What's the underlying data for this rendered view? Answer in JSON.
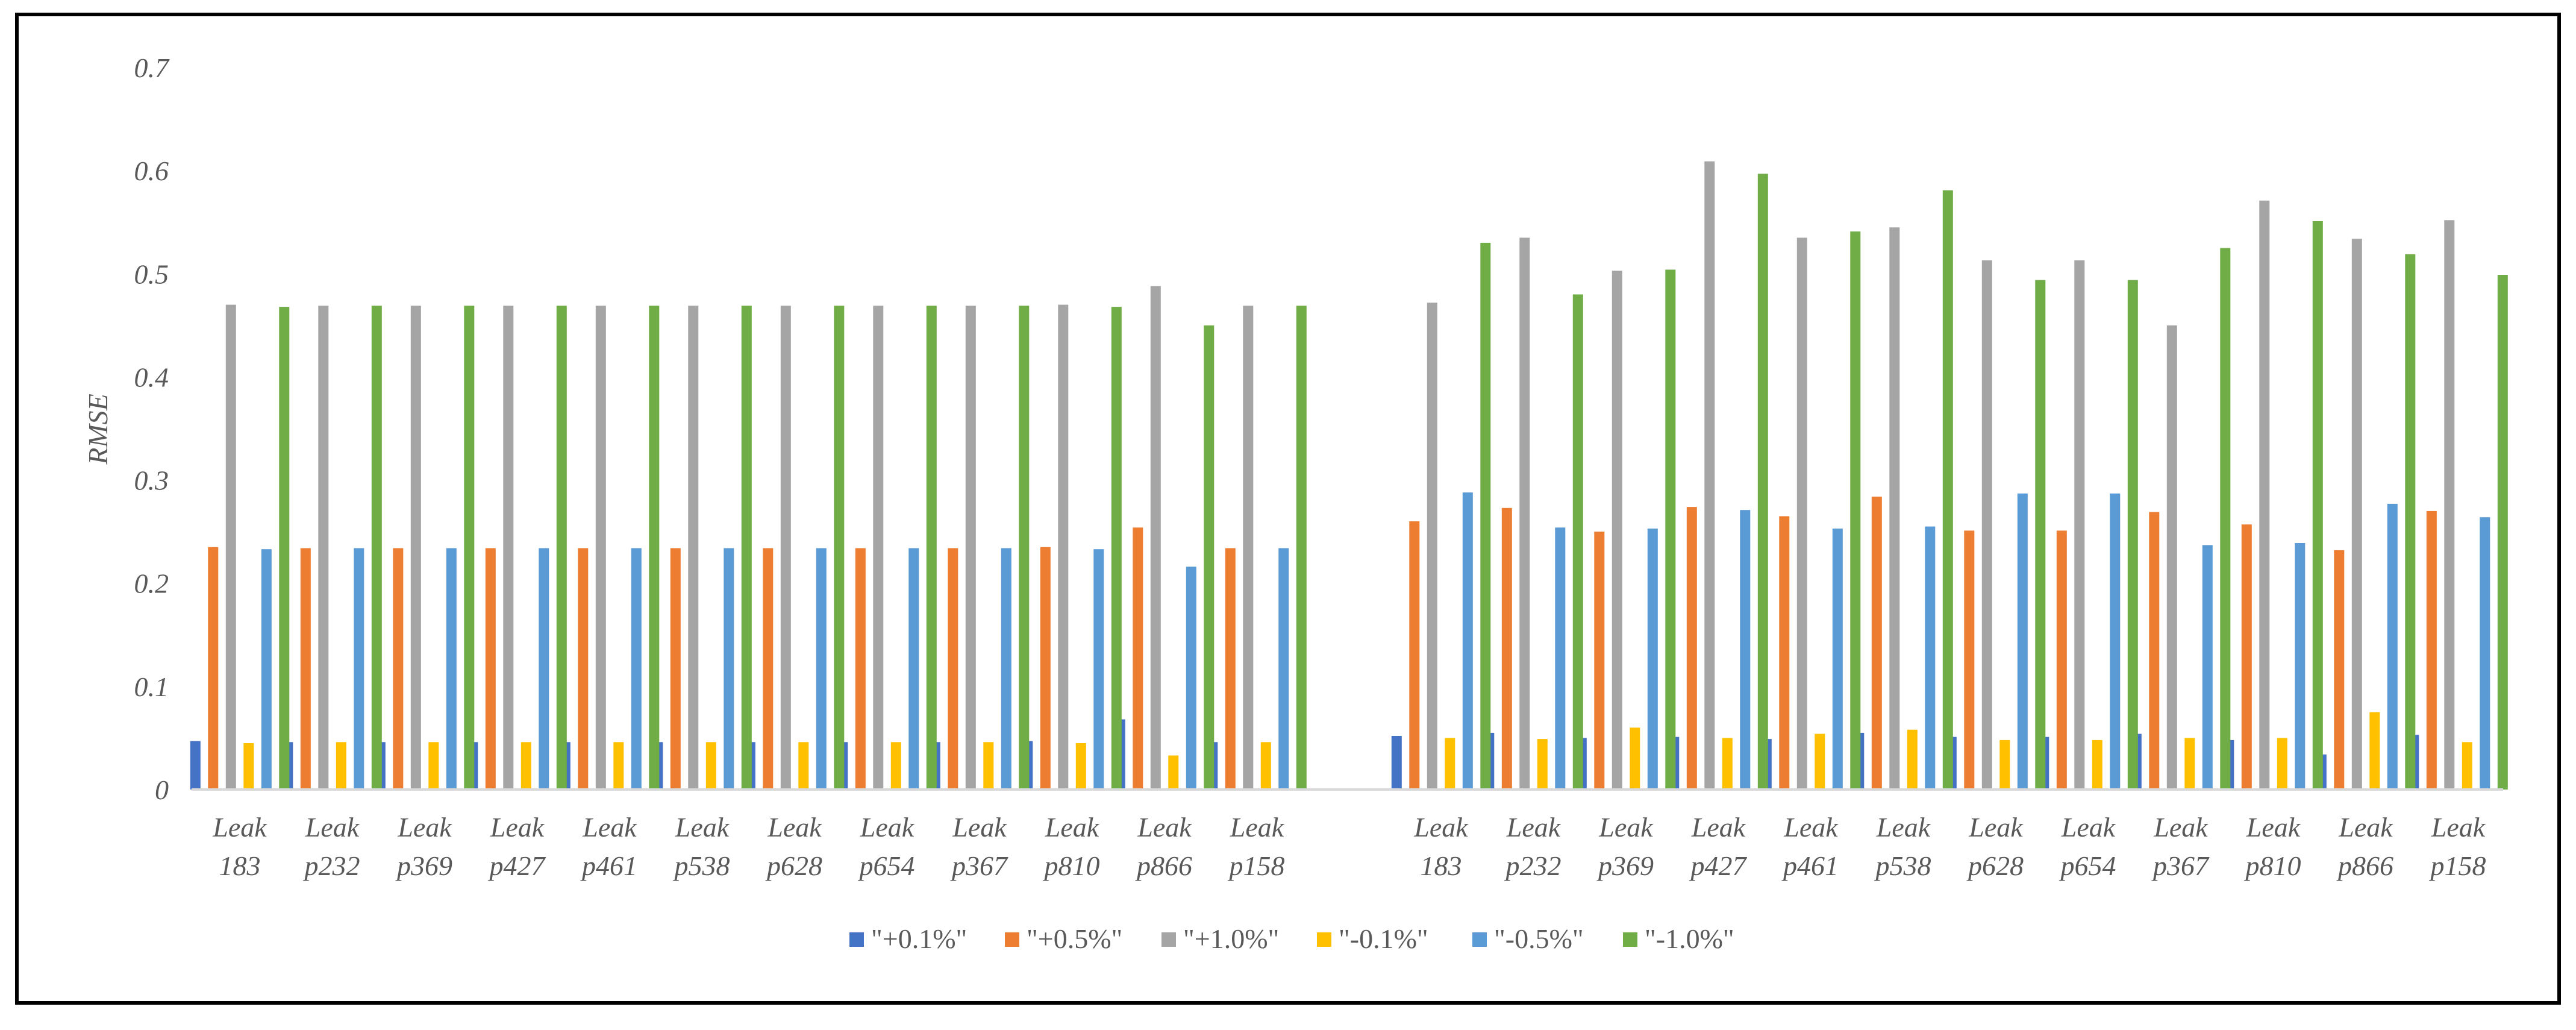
{
  "chart_data": {
    "type": "bar",
    "title": "",
    "xlabel": "",
    "ylabel": "RMSE",
    "ylim": [
      0,
      0.7
    ],
    "yticks": [
      "0",
      "0.1",
      "0.2",
      "0.3",
      "0.4",
      "0.5",
      "0.6",
      "0.7"
    ],
    "grid": false,
    "legend_position": "bottom",
    "categories": [
      [
        "Leak",
        "183"
      ],
      [
        "Leak",
        "p232"
      ],
      [
        "Leak",
        "p369"
      ],
      [
        "Leak",
        "p427"
      ],
      [
        "Leak",
        "p461"
      ],
      [
        "Leak",
        "p538"
      ],
      [
        "Leak",
        "p628"
      ],
      [
        "Leak",
        "p654"
      ],
      [
        "Leak",
        "p367"
      ],
      [
        "Leak",
        "p810"
      ],
      [
        "Leak",
        "p866"
      ],
      [
        "Leak",
        "p158"
      ],
      [
        "Leak",
        "183"
      ],
      [
        "Leak",
        "p232"
      ],
      [
        "Leak",
        "p369"
      ],
      [
        "Leak",
        "p427"
      ],
      [
        "Leak",
        "p461"
      ],
      [
        "Leak",
        "p538"
      ],
      [
        "Leak",
        "p628"
      ],
      [
        "Leak",
        "p654"
      ],
      [
        "Leak",
        "p367"
      ],
      [
        "Leak",
        "p810"
      ],
      [
        "Leak",
        "p866"
      ],
      [
        "Leak",
        "p158"
      ]
    ],
    "series": [
      {
        "name": "\"+0.1%\"",
        "color": "#4472c4",
        "values": [
          0.047,
          0.046,
          0.046,
          0.046,
          0.046,
          0.046,
          0.046,
          0.046,
          0.046,
          0.047,
          0.068,
          0.046,
          0.052,
          0.055,
          0.05,
          0.051,
          0.049,
          0.055,
          0.051,
          0.051,
          0.054,
          0.048,
          0.034,
          0.053
        ]
      },
      {
        "name": "\"+0.5%\"",
        "color": "#ed7d31",
        "values": [
          0.235,
          0.234,
          0.234,
          0.234,
          0.234,
          0.234,
          0.234,
          0.234,
          0.234,
          0.235,
          0.254,
          0.234,
          0.26,
          0.273,
          0.25,
          0.274,
          0.265,
          0.284,
          0.251,
          0.251,
          0.269,
          0.257,
          0.232,
          0.27
        ]
      },
      {
        "name": "\"+1.0%\"",
        "color": "#a5a5a5",
        "values": [
          0.47,
          0.469,
          0.469,
          0.469,
          0.469,
          0.469,
          0.469,
          0.469,
          0.469,
          0.47,
          0.488,
          0.469,
          0.472,
          0.535,
          0.503,
          0.609,
          0.535,
          0.545,
          0.513,
          0.513,
          0.45,
          0.571,
          0.534,
          0.552
        ]
      },
      {
        "name": "\"-0.1%\"",
        "color": "#ffc000",
        "values": [
          0.045,
          0.046,
          0.046,
          0.046,
          0.046,
          0.046,
          0.046,
          0.046,
          0.046,
          0.045,
          0.033,
          0.046,
          0.05,
          0.049,
          0.06,
          0.05,
          0.054,
          0.058,
          0.048,
          0.048,
          0.05,
          0.05,
          0.075,
          0.046
        ]
      },
      {
        "name": "\"-0.5%\"",
        "color": "#5b9bd5",
        "values": [
          0.233,
          0.234,
          0.234,
          0.234,
          0.234,
          0.234,
          0.234,
          0.234,
          0.234,
          0.233,
          0.216,
          0.234,
          0.288,
          0.254,
          0.253,
          0.271,
          0.253,
          0.255,
          0.287,
          0.287,
          0.237,
          0.239,
          0.277,
          0.264
        ]
      },
      {
        "name": "\"-1.0%\"",
        "color": "#70ad47",
        "values": [
          0.468,
          0.469,
          0.469,
          0.469,
          0.469,
          0.469,
          0.469,
          0.469,
          0.469,
          0.468,
          0.45,
          0.469,
          0.53,
          0.48,
          0.504,
          0.597,
          0.541,
          0.581,
          0.494,
          0.494,
          0.525,
          0.551,
          0.519,
          0.499
        ]
      }
    ]
  }
}
